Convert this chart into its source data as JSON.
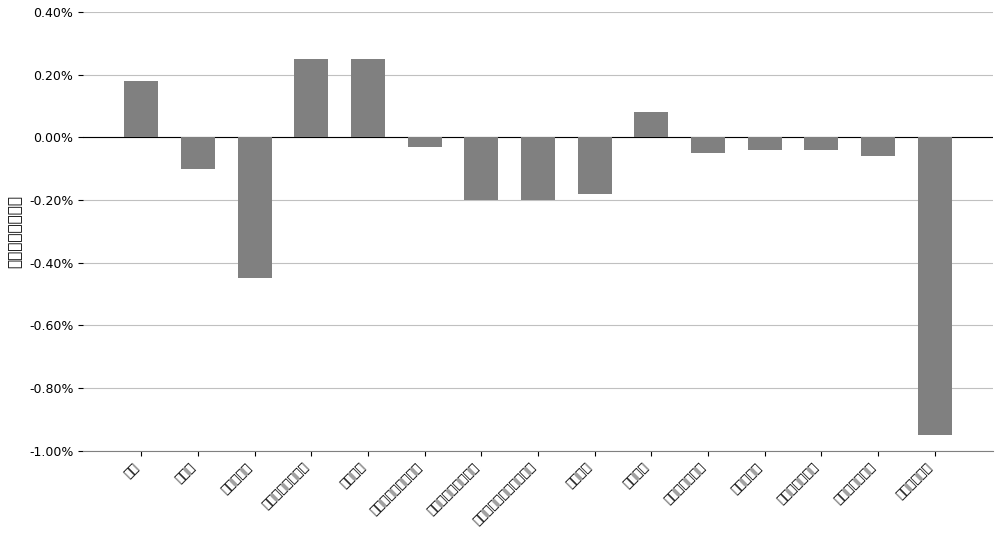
{
  "categories": [
    "推力",
    "耗油率",
    "风扇涵道比",
    "核心风扇级涵道比",
    "总涵道比",
    "中涵道总压恢复系数",
    "后涵道总压恢复系数",
    "涡轮后机匣总压恢复系数",
    "燃油流量",
    "风扇压比",
    "核心风扇级压比",
    "压气机压比",
    "高压涡轮液压比",
    "低压涡轮液压比",
    "喷管喉部面积"
  ],
  "values": [
    0.0018,
    -0.001,
    -0.0045,
    0.0025,
    0.0025,
    -0.0003,
    -0.002,
    -0.002,
    -0.0018,
    0.0008,
    -0.0005,
    -0.0004,
    -0.0004,
    -0.0006,
    -0.0095
  ],
  "bar_color": "#808080",
  "ylabel": "主要参数相对误差",
  "ylim": [
    -0.01,
    0.004
  ],
  "yticks": [
    -0.01,
    -0.008,
    -0.006,
    -0.004,
    -0.002,
    0.0,
    0.002,
    0.004
  ],
  "ytick_labels": [
    "-1.00%",
    "-0.80%",
    "-0.60%",
    "-0.40%",
    "-0.20%",
    "0.00%",
    "0.20%",
    "0.40%"
  ],
  "background_color": "#ffffff",
  "grid_color": "#c0c0c0",
  "figure_width": 10.0,
  "figure_height": 5.35,
  "tick_fontsize": 9,
  "ylabel_fontsize": 11
}
